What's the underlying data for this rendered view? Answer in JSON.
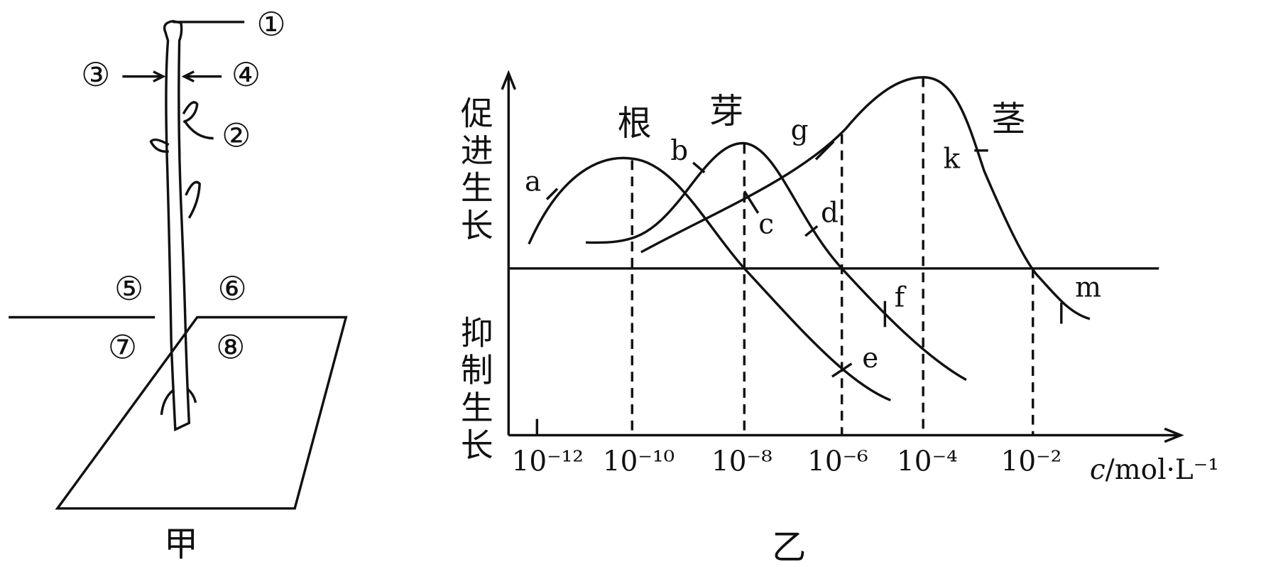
{
  "panel_a": {
    "caption": "甲",
    "labels": [
      "①",
      "②",
      "③",
      "④",
      "⑤",
      "⑥",
      "⑦",
      "⑧"
    ]
  },
  "panel_b": {
    "caption": "乙",
    "y_axis": {
      "promote": "促进生长",
      "inhibit": "抑制生长"
    },
    "x_axis": {
      "variable": "c",
      "unit": "/mol·L⁻¹",
      "ticks": [
        "10⁻¹²",
        "10⁻¹⁰",
        "10⁻⁸",
        "10⁻⁶",
        "10⁻⁴",
        "10⁻²"
      ]
    },
    "curves": [
      "根",
      "芽",
      "茎"
    ],
    "points": [
      "a",
      "b",
      "c",
      "d",
      "e",
      "f",
      "g",
      "k",
      "m"
    ]
  }
}
